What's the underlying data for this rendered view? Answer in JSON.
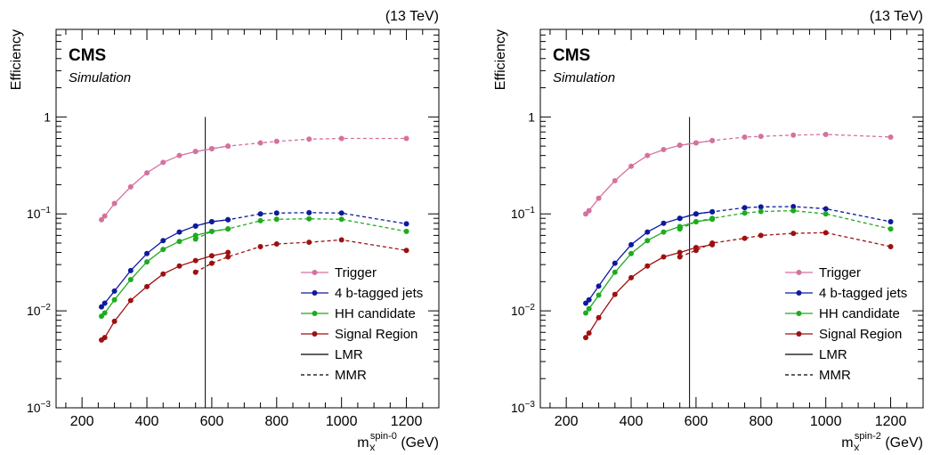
{
  "chart_data": [
    {
      "type": "line",
      "energy_label": "(13 TeV)",
      "experiment_label": "CMS",
      "sublabel": "Simulation",
      "ylabel": "Efficiency",
      "xlabel_main": "m",
      "xlabel_sub": "X",
      "xlabel_sup": "spin-0",
      "xlabel_unit": "(GeV)",
      "xlim": [
        120,
        1300
      ],
      "ylim": [
        0.001,
        8
      ],
      "yscale": "log",
      "x_ticks": [
        200,
        400,
        600,
        800,
        1000,
        1200
      ],
      "y_ticks": [
        {
          "base": "10",
          "exp": "−3",
          "value": 0.001
        },
        {
          "base": "10",
          "exp": "−2",
          "value": 0.01
        },
        {
          "base": "10",
          "exp": "−1",
          "value": 0.1
        },
        {
          "base": "1",
          "exp": "",
          "value": 1
        }
      ],
      "vline_x": 580,
      "legend": {
        "position": "bottom-right",
        "entries": [
          "Trigger",
          "4 b-tagged jets",
          "HH candidate",
          "Signal Region",
          "LMR",
          "MMR"
        ]
      },
      "series": [
        {
          "name": "Trigger",
          "color": "#d4729e",
          "lmr": {
            "x": [
              260,
              270,
              300,
              350,
              400,
              450,
              500,
              550,
              600,
              650
            ],
            "y": [
              0.087,
              0.095,
              0.128,
              0.19,
              0.265,
              0.34,
              0.4,
              0.44,
              0.47,
              0.5
            ]
          },
          "mmr": {
            "x": [
              550,
              600,
              650,
              750,
              800,
              900,
              1000,
              1200
            ],
            "y": [
              0.44,
              0.47,
              0.5,
              0.54,
              0.56,
              0.59,
              0.6,
              0.6
            ]
          }
        },
        {
          "name": "4 b-tagged jets",
          "color": "#0d1a9c",
          "lmr": {
            "x": [
              260,
              270,
              300,
              350,
              400,
              450,
              500,
              550,
              600,
              650
            ],
            "y": [
              0.011,
              0.012,
              0.016,
              0.026,
              0.039,
              0.053,
              0.065,
              0.075,
              0.083,
              0.087
            ]
          },
          "mmr": {
            "x": [
              550,
              600,
              650,
              750,
              800,
              900,
              1000,
              1200
            ],
            "y": [
              0.075,
              0.083,
              0.087,
              0.1,
              0.102,
              0.103,
              0.102,
              0.079
            ]
          }
        },
        {
          "name": "HH candidate",
          "color": "#1eab1e",
          "lmr": {
            "x": [
              260,
              270,
              300,
              350,
              400,
              450,
              500,
              550,
              600,
              650
            ],
            "y": [
              0.0088,
              0.0095,
              0.013,
              0.021,
              0.032,
              0.043,
              0.052,
              0.06,
              0.066,
              0.07
            ]
          },
          "mmr": {
            "x": [
              550,
              600,
              650,
              750,
              800,
              900,
              1000,
              1200
            ],
            "y": [
              0.055,
              0.066,
              0.07,
              0.085,
              0.088,
              0.089,
              0.088,
              0.066
            ]
          }
        },
        {
          "name": "Signal Region",
          "color": "#9e1010",
          "lmr": {
            "x": [
              260,
              270,
              300,
              350,
              400,
              450,
              500,
              550,
              600,
              650
            ],
            "y": [
              0.005,
              0.0053,
              0.0078,
              0.0128,
              0.0178,
              0.024,
              0.029,
              0.033,
              0.037,
              0.04
            ]
          },
          "mmr": {
            "x": [
              550,
              600,
              650,
              750,
              800,
              900,
              1000,
              1200
            ],
            "y": [
              0.025,
              0.031,
              0.036,
              0.046,
              0.049,
              0.051,
              0.054,
              0.042
            ]
          }
        }
      ]
    },
    {
      "type": "line",
      "energy_label": "(13 TeV)",
      "experiment_label": "CMS",
      "sublabel": "Simulation",
      "ylabel": "Efficiency",
      "xlabel_main": "m",
      "xlabel_sub": "X",
      "xlabel_sup": "spin-2",
      "xlabel_unit": "(GeV)",
      "xlim": [
        120,
        1300
      ],
      "ylim": [
        0.001,
        8
      ],
      "yscale": "log",
      "x_ticks": [
        200,
        400,
        600,
        800,
        1000,
        1200
      ],
      "y_ticks": [
        {
          "base": "10",
          "exp": "−3",
          "value": 0.001
        },
        {
          "base": "10",
          "exp": "−2",
          "value": 0.01
        },
        {
          "base": "10",
          "exp": "−1",
          "value": 0.1
        },
        {
          "base": "1",
          "exp": "",
          "value": 1
        }
      ],
      "vline_x": 580,
      "legend": {
        "position": "bottom-right",
        "entries": [
          "Trigger",
          "4 b-tagged jets",
          "HH candidate",
          "Signal Region",
          "LMR",
          "MMR"
        ]
      },
      "series": [
        {
          "name": "Trigger",
          "color": "#d4729e",
          "lmr": {
            "x": [
              260,
              270,
              300,
              350,
              400,
              450,
              500,
              550,
              600,
              650
            ],
            "y": [
              0.1,
              0.108,
              0.145,
              0.22,
              0.31,
              0.4,
              0.46,
              0.51,
              0.54,
              0.57
            ]
          },
          "mmr": {
            "x": [
              550,
              600,
              650,
              750,
              800,
              900,
              1000,
              1200
            ],
            "y": [
              0.51,
              0.54,
              0.57,
              0.62,
              0.63,
              0.65,
              0.66,
              0.62
            ]
          }
        },
        {
          "name": "4 b-tagged jets",
          "color": "#0d1a9c",
          "lmr": {
            "x": [
              260,
              270,
              300,
              350,
              400,
              450,
              500,
              550,
              600,
              650
            ],
            "y": [
              0.012,
              0.013,
              0.018,
              0.031,
              0.048,
              0.065,
              0.08,
              0.09,
              0.1,
              0.105
            ]
          },
          "mmr": {
            "x": [
              550,
              600,
              650,
              750,
              800,
              900,
              1000,
              1200
            ],
            "y": [
              0.09,
              0.1,
              0.105,
              0.116,
              0.118,
              0.119,
              0.113,
              0.083
            ]
          }
        },
        {
          "name": "HH candidate",
          "color": "#1eab1e",
          "lmr": {
            "x": [
              260,
              270,
              300,
              350,
              400,
              450,
              500,
              550,
              600,
              650
            ],
            "y": [
              0.0095,
              0.0105,
              0.0145,
              0.025,
              0.039,
              0.053,
              0.065,
              0.074,
              0.083,
              0.088
            ]
          },
          "mmr": {
            "x": [
              550,
              600,
              650,
              750,
              800,
              900,
              1000,
              1200
            ],
            "y": [
              0.07,
              0.083,
              0.09,
              0.102,
              0.106,
              0.108,
              0.1,
              0.07
            ]
          }
        },
        {
          "name": "Signal Region",
          "color": "#9e1010",
          "lmr": {
            "x": [
              260,
              270,
              300,
              350,
              400,
              450,
              500,
              550,
              600,
              650
            ],
            "y": [
              0.0053,
              0.0059,
              0.0085,
              0.0148,
              0.022,
              0.029,
              0.036,
              0.04,
              0.045,
              0.048
            ]
          },
          "mmr": {
            "x": [
              550,
              600,
              650,
              750,
              800,
              900,
              1000,
              1200
            ],
            "y": [
              0.036,
              0.042,
              0.05,
              0.056,
              0.06,
              0.063,
              0.064,
              0.046
            ]
          }
        }
      ]
    }
  ]
}
